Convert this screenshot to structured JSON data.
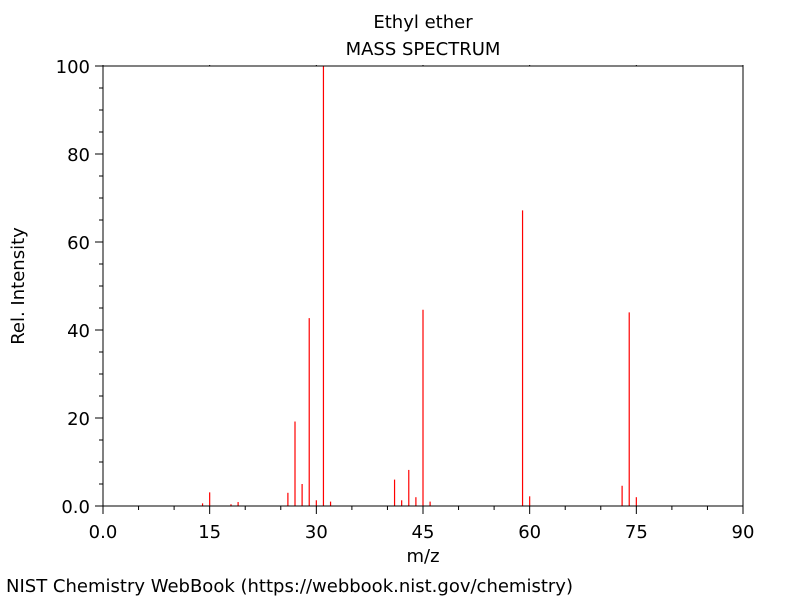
{
  "chart_data": {
    "type": "bar",
    "title": "Ethyl ether",
    "subtitle": "MASS SPECTRUM",
    "xlabel": "m/z",
    "ylabel": "Rel. Intensity",
    "xlim": [
      0,
      90
    ],
    "ylim": [
      0,
      100
    ],
    "x_ticks": [
      "0.0",
      "15",
      "30",
      "45",
      "60",
      "75",
      "90"
    ],
    "y_ticks": [
      "0.0",
      "20",
      "40",
      "60",
      "80",
      "100"
    ],
    "grid": false,
    "bar_color": "#ff0000",
    "peaks": [
      {
        "mz": 14,
        "intensity": 0.6
      },
      {
        "mz": 15,
        "intensity": 3.1
      },
      {
        "mz": 18,
        "intensity": 0.4
      },
      {
        "mz": 19,
        "intensity": 0.9
      },
      {
        "mz": 26,
        "intensity": 3.0
      },
      {
        "mz": 27,
        "intensity": 19.2
      },
      {
        "mz": 28,
        "intensity": 5.0
      },
      {
        "mz": 29,
        "intensity": 42.7
      },
      {
        "mz": 30,
        "intensity": 1.3
      },
      {
        "mz": 31,
        "intensity": 100
      },
      {
        "mz": 32,
        "intensity": 1.0
      },
      {
        "mz": 41,
        "intensity": 6.0
      },
      {
        "mz": 42,
        "intensity": 1.3
      },
      {
        "mz": 43,
        "intensity": 8.2
      },
      {
        "mz": 44,
        "intensity": 2.0
      },
      {
        "mz": 45,
        "intensity": 44.6
      },
      {
        "mz": 46,
        "intensity": 1.0
      },
      {
        "mz": 59,
        "intensity": 67.2
      },
      {
        "mz": 60,
        "intensity": 2.2
      },
      {
        "mz": 73,
        "intensity": 4.6
      },
      {
        "mz": 74,
        "intensity": 44.0
      },
      {
        "mz": 75,
        "intensity": 2.0
      }
    ]
  },
  "footer": "NIST Chemistry WebBook (https://webbook.nist.gov/chemistry)"
}
